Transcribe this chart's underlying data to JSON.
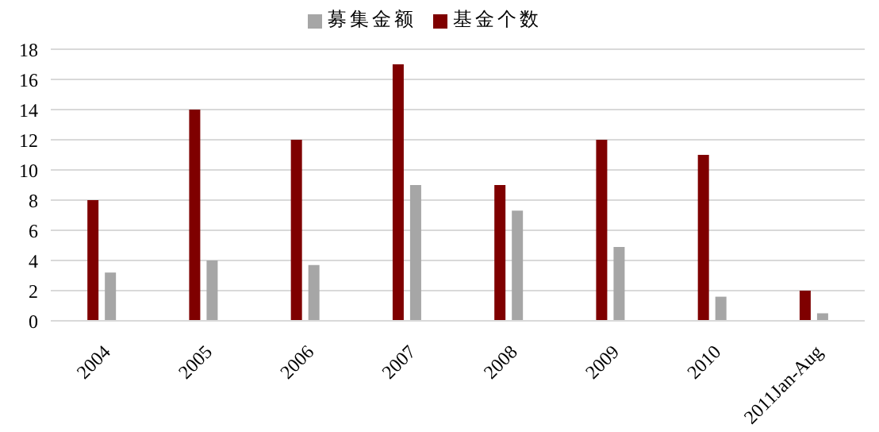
{
  "chart_data": {
    "type": "bar",
    "categories": [
      "2004",
      "2005",
      "2006",
      "2007",
      "2008",
      "2009",
      "2010",
      "2011Jan-Aug"
    ],
    "series": [
      {
        "name": "基金个数",
        "color": "#7f0000",
        "values": [
          8,
          14,
          12,
          17,
          9,
          12,
          11,
          2
        ]
      },
      {
        "name": "募集金额",
        "color": "#a6a6a6",
        "values": [
          3.2,
          4,
          3.7,
          9,
          7.3,
          4.9,
          1.6,
          0.5
        ]
      }
    ],
    "ylim": [
      0,
      18
    ],
    "yticks": [
      0,
      2,
      4,
      6,
      8,
      10,
      12,
      14,
      16,
      18
    ],
    "grid": "y",
    "legend": "top"
  }
}
